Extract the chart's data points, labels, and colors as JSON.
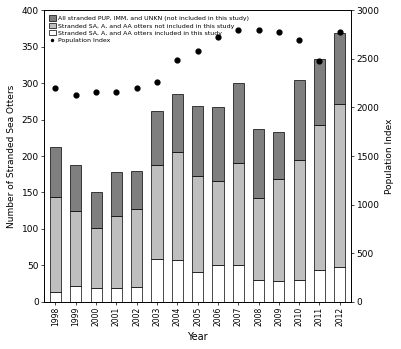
{
  "years": [
    1998,
    1999,
    2000,
    2001,
    2002,
    2003,
    2004,
    2005,
    2006,
    2007,
    2008,
    2009,
    2010,
    2011,
    2012
  ],
  "white_bars": [
    13,
    22,
    18,
    18,
    20,
    58,
    57,
    40,
    50,
    50,
    30,
    28,
    30,
    43,
    47
  ],
  "light_gray_bars": [
    130,
    103,
    83,
    100,
    107,
    130,
    148,
    133,
    116,
    140,
    112,
    140,
    165,
    200,
    225
  ],
  "dark_gray_bars": [
    70,
    62,
    50,
    60,
    53,
    74,
    80,
    96,
    102,
    110,
    95,
    65,
    110,
    90,
    97
  ],
  "population_index": [
    2200,
    2130,
    2160,
    2160,
    2200,
    2260,
    2490,
    2580,
    2730,
    2800,
    2800,
    2780,
    2700,
    2480,
    2780
  ],
  "ylabel_left": "Number of Stranded Sea Otters",
  "ylabel_right": "Population Index",
  "xlabel": "Year",
  "ylim_left": [
    0,
    400
  ],
  "ylim_right": [
    0,
    3000
  ],
  "yticks_left": [
    0,
    50,
    100,
    150,
    200,
    250,
    300,
    350,
    400
  ],
  "yticks_right": [
    0,
    500,
    1000,
    1500,
    2000,
    2500,
    3000
  ],
  "legend_labels": [
    "All stranded PUP, IMM, and UNKN (not included in this study)",
    "Stranded SA, A, and AA otters not included in this study",
    "Stranded SA, A, and AA otters included in this study",
    "Population Index"
  ],
  "colors": {
    "dark_gray": "#7f7f7f",
    "light_gray": "#bfbfbf",
    "white": "#ffffff",
    "edge": "#000000"
  },
  "bar_width": 0.55
}
